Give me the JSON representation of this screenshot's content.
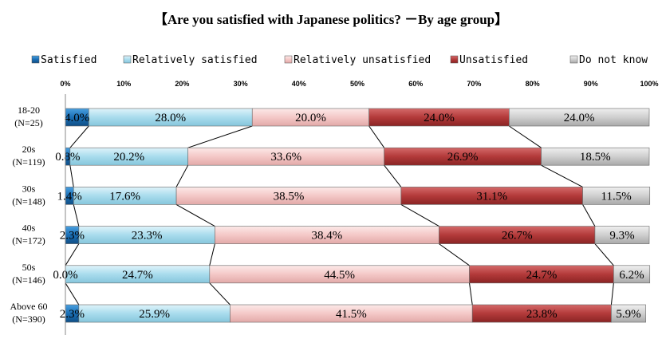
{
  "chart_data": {
    "type": "bar",
    "orientation": "horizontal",
    "stacked": true,
    "percent": true,
    "title": "【Are you satisfied with Japanese politics?  －By age group】",
    "categories": [
      {
        "label": "18-20",
        "n": "(N=25)"
      },
      {
        "label": "20s",
        "n": "(N=119)"
      },
      {
        "label": "30s",
        "n": "(N=148)"
      },
      {
        "label": "40s",
        "n": "(N=172)"
      },
      {
        "label": "50s",
        "n": "(N=146)"
      },
      {
        "label": "Above 60",
        "n": "(N=390)"
      }
    ],
    "series": [
      {
        "name": "Satisfied",
        "color": "#1a6fb6",
        "values": [
          4.0,
          0.8,
          1.4,
          2.3,
          0.0,
          2.3
        ],
        "labels": [
          "4.0%",
          "0.8%",
          "1.4%",
          "2.3%",
          "0.0%",
          "2.3%"
        ]
      },
      {
        "name": "Relatively satisfied",
        "color": "#a9dced",
        "values": [
          28.0,
          20.2,
          17.6,
          23.3,
          24.7,
          25.9
        ],
        "labels": [
          "28.0%",
          "20.2%",
          "17.6%",
          "23.3%",
          "24.7%",
          "25.9%"
        ]
      },
      {
        "name": "Relatively unsatisfied",
        "color": "#f4c8c7",
        "values": [
          20.0,
          33.6,
          38.5,
          38.4,
          44.5,
          41.5
        ],
        "labels": [
          "20.0%",
          "33.6%",
          "38.5%",
          "38.4%",
          "44.5%",
          "41.5%"
        ]
      },
      {
        "name": "Unsatisfied",
        "color": "#b33a3a",
        "values": [
          24.0,
          26.9,
          31.1,
          26.7,
          24.7,
          23.8
        ],
        "labels": [
          "24.0%",
          "26.9%",
          "31.1%",
          "26.7%",
          "24.7%",
          "23.8%"
        ]
      },
      {
        "name": "Do not know",
        "color": "#c8c8c8",
        "values": [
          24.0,
          18.5,
          11.5,
          9.3,
          6.2,
          5.9
        ],
        "labels": [
          "24.0%",
          "18.5%",
          "11.5%",
          "9.3%",
          "6.2%",
          "5.9%"
        ]
      }
    ],
    "xlim": [
      0,
      100
    ],
    "xticks": [
      "0%",
      "10%",
      "20%",
      "30%",
      "40%",
      "50%",
      "60%",
      "70%",
      "80%",
      "90%",
      "100%"
    ],
    "series_lines": true,
    "legend": "top"
  }
}
